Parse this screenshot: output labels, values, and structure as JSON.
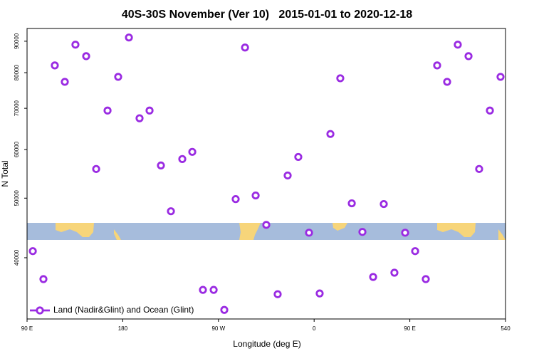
{
  "chart_data": {
    "type": "scatter",
    "title": "40S-30S November (Ver 10)   2015-01-01 to 2020-12-18",
    "x_label": "Longitude (deg E)",
    "y_label": "N Total",
    "xlim": [
      90,
      540
    ],
    "ylim": [
      31800,
      94400
    ],
    "ylog": true,
    "xticks": [
      {
        "value": 90,
        "label": "90 E"
      },
      180,
      {
        "value": 270,
        "label": "90 W"
      },
      {
        "value": 360,
        "label": "0"
      },
      {
        "value": 450,
        "label": "90 E"
      },
      540
    ],
    "yticks": [
      40000,
      50000,
      60000,
      70000,
      80000,
      90000
    ],
    "legend": "bottom-left",
    "series": [
      {
        "name": "Land (Nadir&Glint) and Ocean (Glint)",
        "color": "#9a2be2",
        "x": [
          95.4,
          105.4,
          116.1,
          125.5,
          135.5,
          145.6,
          155.0,
          165.7,
          175.7,
          185.8,
          195.8,
          205.2,
          215.9,
          225.3,
          236.0,
          245.4,
          255.4,
          265.5,
          275.5,
          286.2,
          295.0,
          305.0,
          315.0,
          325.7,
          335.1,
          345.1,
          355.2,
          365.2,
          375.3,
          384.6,
          395.4,
          405.4,
          415.5,
          425.5,
          435.5,
          445.6,
          455.0,
          465.0,
          475.7,
          485.1,
          495.1,
          505.2,
          515.2,
          525.3,
          535.3
        ],
        "values": [
          41000,
          36920,
          82200,
          77300,
          88850,
          85100,
          55770,
          69420,
          78760,
          91260,
          67440,
          69420,
          56510,
          47610,
          57890,
          59460,
          35460,
          35460,
          32900,
          49820,
          87900,
          50500,
          45240,
          34890,
          54430,
          58340,
          43930,
          34990,
          63580,
          78340,
          49040,
          44060,
          37220,
          48910,
          37820,
          43930,
          41000,
          36920,
          82200,
          77300,
          88850,
          85100,
          55770,
          69420,
          78760
        ]
      }
    ]
  }
}
